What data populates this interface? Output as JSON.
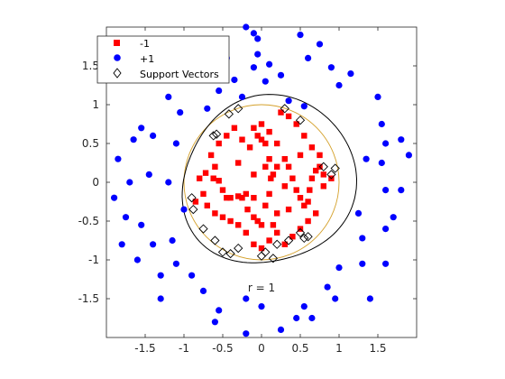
{
  "chart_data": {
    "type": "scatter",
    "xlim": [
      -2,
      2
    ],
    "ylim": [
      -2,
      2
    ],
    "xticks": [
      -1.5,
      -1,
      -0.5,
      0,
      0.5,
      1,
      1.5
    ],
    "xtick_labels": [
      "-1.5",
      "-1",
      "-0.5",
      "0",
      "0.5",
      "1",
      "1.5"
    ],
    "yticks": [
      -1.5,
      -1,
      -0.5,
      0,
      0.5,
      1,
      1.5
    ],
    "ytick_labels": [
      "-1.5",
      "-1",
      "-0.5",
      "0",
      "0.5",
      "1",
      "1.5"
    ],
    "grid": false,
    "legend_position": "top-left",
    "legend": [
      {
        "label": "-1",
        "marker": "square",
        "color": "#ff0000"
      },
      {
        "label": "+1",
        "marker": "circle",
        "color": "#0000ff"
      },
      {
        "label": "Support Vectors",
        "marker": "diamond",
        "color": "#000000"
      }
    ],
    "annotation": {
      "text": "r = 1",
      "x": 0.0,
      "y": -1.36
    },
    "true_boundary": {
      "type": "circle",
      "radius": 1,
      "color": "#d4a02a"
    },
    "decision_boundary": {
      "color": "#000000"
    },
    "series": [
      {
        "name": "-1",
        "marker": "square",
        "color": "#ff0000",
        "points": [
          [
            -0.72,
            0.12
          ],
          [
            -0.62,
            0.05
          ],
          [
            -0.55,
            0.02
          ],
          [
            -0.5,
            -0.1
          ],
          [
            -0.4,
            -0.2
          ],
          [
            -0.3,
            -0.18
          ],
          [
            -0.25,
            -0.2
          ],
          [
            -0.2,
            -0.15
          ],
          [
            -0.18,
            -0.35
          ],
          [
            -0.1,
            -0.45
          ],
          [
            -0.05,
            -0.5
          ],
          [
            0.0,
            -0.55
          ],
          [
            0.05,
            -0.3
          ],
          [
            0.1,
            -0.15
          ],
          [
            0.12,
            0.05
          ],
          [
            0.15,
            0.1
          ],
          [
            0.2,
            0.2
          ],
          [
            0.1,
            0.3
          ],
          [
            0.05,
            0.5
          ],
          [
            0.0,
            0.55
          ],
          [
            -0.05,
            0.6
          ],
          [
            -0.1,
            0.7
          ],
          [
            0.0,
            0.75
          ],
          [
            0.1,
            0.65
          ],
          [
            0.2,
            0.5
          ],
          [
            0.3,
            0.3
          ],
          [
            0.35,
            0.2
          ],
          [
            0.4,
            0.05
          ],
          [
            0.45,
            -0.1
          ],
          [
            0.5,
            -0.2
          ],
          [
            0.55,
            -0.3
          ],
          [
            0.6,
            -0.25
          ],
          [
            0.62,
            -0.1
          ],
          [
            0.65,
            0.05
          ],
          [
            0.7,
            0.15
          ],
          [
            0.75,
            0.2
          ],
          [
            0.8,
            -0.05
          ],
          [
            0.7,
            -0.4
          ],
          [
            0.6,
            -0.5
          ],
          [
            0.5,
            -0.6
          ],
          [
            0.4,
            -0.7
          ],
          [
            0.3,
            -0.8
          ],
          [
            0.2,
            -0.65
          ],
          [
            0.1,
            -0.75
          ],
          [
            0.0,
            -0.85
          ],
          [
            -0.1,
            -0.8
          ],
          [
            -0.2,
            -0.65
          ],
          [
            -0.3,
            -0.55
          ],
          [
            -0.4,
            -0.5
          ],
          [
            -0.5,
            -0.45
          ],
          [
            -0.6,
            -0.4
          ],
          [
            -0.7,
            -0.3
          ],
          [
            -0.75,
            -0.15
          ],
          [
            -0.8,
            0.05
          ],
          [
            -0.65,
            0.35
          ],
          [
            -0.55,
            0.5
          ],
          [
            -0.45,
            0.6
          ],
          [
            -0.35,
            0.7
          ],
          [
            -0.25,
            0.55
          ],
          [
            -0.15,
            0.45
          ],
          [
            0.25,
            0.9
          ],
          [
            0.35,
            0.85
          ],
          [
            0.45,
            0.75
          ],
          [
            0.55,
            0.6
          ],
          [
            0.65,
            0.45
          ],
          [
            0.75,
            0.35
          ],
          [
            0.3,
            -0.05
          ],
          [
            -0.1,
            0.1
          ],
          [
            -0.3,
            0.25
          ],
          [
            0.5,
            0.35
          ],
          [
            0.2,
            -0.4
          ],
          [
            -0.45,
            -0.2
          ],
          [
            0.35,
            -0.35
          ],
          [
            0.05,
            0.2
          ],
          [
            0.15,
            -0.55
          ],
          [
            -0.6,
            0.2
          ],
          [
            0.8,
            0.1
          ],
          [
            0.9,
            0.05
          ],
          [
            -0.85,
            -0.25
          ],
          [
            -0.1,
            -0.2
          ]
        ]
      },
      {
        "name": "+1",
        "marker": "circle",
        "color": "#0000ff",
        "points": [
          [
            -0.2,
            2.0
          ],
          [
            -0.1,
            1.92
          ],
          [
            -0.05,
            1.85
          ],
          [
            0.5,
            1.9
          ],
          [
            0.75,
            1.78
          ],
          [
            -0.7,
            1.78
          ],
          [
            -0.95,
            1.65
          ],
          [
            -1.1,
            1.52
          ],
          [
            -1.3,
            1.45
          ],
          [
            -1.5,
            1.5
          ],
          [
            -0.1,
            1.48
          ],
          [
            0.1,
            1.52
          ],
          [
            0.25,
            1.38
          ],
          [
            -0.35,
            1.32
          ],
          [
            -0.55,
            1.18
          ],
          [
            -0.95,
            1.35
          ],
          [
            0.9,
            1.48
          ],
          [
            1.0,
            1.25
          ],
          [
            1.5,
            1.1
          ],
          [
            1.55,
            0.75
          ],
          [
            1.6,
            0.5
          ],
          [
            1.9,
            0.35
          ],
          [
            1.55,
            0.25
          ],
          [
            1.35,
            0.3
          ],
          [
            1.6,
            -0.1
          ],
          [
            1.7,
            -0.45
          ],
          [
            1.6,
            -0.6
          ],
          [
            1.3,
            -0.72
          ],
          [
            1.6,
            -1.05
          ],
          [
            1.3,
            -1.05
          ],
          [
            1.0,
            -1.1
          ],
          [
            0.85,
            -1.35
          ],
          [
            0.95,
            -1.5
          ],
          [
            0.55,
            -1.6
          ],
          [
            0.45,
            -1.75
          ],
          [
            0.65,
            -1.75
          ],
          [
            0.25,
            -1.9
          ],
          [
            0.0,
            -1.6
          ],
          [
            -0.2,
            -1.5
          ],
          [
            -0.55,
            -1.65
          ],
          [
            -0.75,
            -1.4
          ],
          [
            -0.9,
            -1.2
          ],
          [
            -1.1,
            -1.05
          ],
          [
            -1.3,
            -1.2
          ],
          [
            -1.6,
            -1.0
          ],
          [
            -1.4,
            -0.8
          ],
          [
            -1.15,
            -0.75
          ],
          [
            -1.55,
            -0.55
          ],
          [
            -1.75,
            -0.45
          ],
          [
            -1.9,
            -0.2
          ],
          [
            -1.7,
            0.0
          ],
          [
            -1.45,
            0.1
          ],
          [
            -1.2,
            0.0
          ],
          [
            -1.85,
            0.3
          ],
          [
            -1.65,
            0.55
          ],
          [
            -1.55,
            0.7
          ],
          [
            -1.4,
            0.6
          ],
          [
            -1.1,
            0.5
          ],
          [
            -0.7,
            0.95
          ],
          [
            -1.05,
            0.9
          ],
          [
            0.05,
            1.3
          ],
          [
            0.35,
            1.05
          ],
          [
            0.55,
            0.98
          ],
          [
            -0.25,
            1.1
          ],
          [
            -1.3,
            -1.5
          ],
          [
            -0.6,
            -1.8
          ],
          [
            -0.2,
            -1.95
          ],
          [
            1.15,
            1.4
          ],
          [
            1.8,
            0.55
          ],
          [
            1.8,
            -0.1
          ],
          [
            -1.8,
            -0.8
          ],
          [
            1.4,
            -1.5
          ],
          [
            -0.05,
            1.65
          ],
          [
            0.6,
            1.6
          ],
          [
            -1.0,
            -0.35
          ],
          [
            1.25,
            -0.4
          ],
          [
            -0.45,
            1.6
          ],
          [
            -1.2,
            1.1
          ]
        ]
      },
      {
        "name": "Support Vectors",
        "marker": "diamond",
        "color": "#000000",
        "points": [
          [
            -0.62,
            0.6
          ],
          [
            -0.58,
            0.62
          ],
          [
            -0.42,
            0.88
          ],
          [
            -0.3,
            0.95
          ],
          [
            0.3,
            0.95
          ],
          [
            0.5,
            0.8
          ],
          [
            0.8,
            0.2
          ],
          [
            0.95,
            0.18
          ],
          [
            -0.9,
            -0.2
          ],
          [
            -0.88,
            -0.35
          ],
          [
            -0.75,
            -0.6
          ],
          [
            -0.6,
            -0.75
          ],
          [
            -0.3,
            -0.85
          ],
          [
            0.05,
            -0.9
          ],
          [
            0.2,
            -0.8
          ],
          [
            0.35,
            -0.75
          ],
          [
            0.5,
            -0.65
          ],
          [
            0.6,
            -0.7
          ],
          [
            -0.5,
            -0.9
          ],
          [
            0.0,
            -0.95
          ],
          [
            0.9,
            0.1
          ],
          [
            -0.4,
            -0.92
          ],
          [
            0.15,
            -0.98
          ],
          [
            0.55,
            -0.72
          ]
        ]
      }
    ]
  }
}
